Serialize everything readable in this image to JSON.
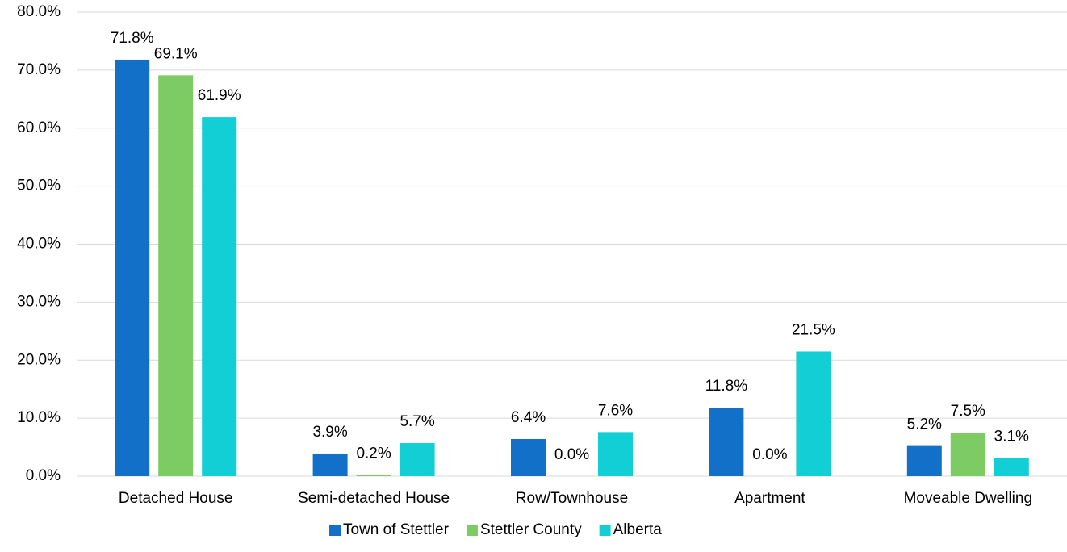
{
  "chart_data": {
    "type": "bar",
    "categories": [
      "Detached House",
      "Semi-detached House",
      "Row/Townhouse",
      "Apartment",
      "Moveable Dwelling"
    ],
    "series": [
      {
        "name": "Town of Stettler",
        "color": "#1370c8",
        "values": [
          71.8,
          3.9,
          6.4,
          11.8,
          5.2
        ],
        "value_labels": [
          "71.8%",
          "3.9%",
          "6.4%",
          "11.8%",
          "5.2%"
        ]
      },
      {
        "name": "Stettler County",
        "color": "#7ccc63",
        "values": [
          69.1,
          0.2,
          0.0,
          0.0,
          7.5
        ],
        "value_labels": [
          "69.1%",
          "0.2%",
          "0.0%",
          "0.0%",
          "7.5%"
        ]
      },
      {
        "name": "Alberta",
        "color": "#12cfd6",
        "values": [
          61.9,
          5.7,
          7.6,
          21.5,
          3.1
        ],
        "value_labels": [
          "61.9%",
          "5.7%",
          "7.6%",
          "21.5%",
          "3.1%"
        ]
      }
    ],
    "ylim": [
      0,
      80
    ],
    "yticks": [
      {
        "value": 0,
        "label": "0.0%"
      },
      {
        "value": 10,
        "label": "10.0%"
      },
      {
        "value": 20,
        "label": "20.0%"
      },
      {
        "value": 30,
        "label": "30.0%"
      },
      {
        "value": 40,
        "label": "40.0%"
      },
      {
        "value": 50,
        "label": "50.0%"
      },
      {
        "value": 60,
        "label": "60.0%"
      },
      {
        "value": 70,
        "label": "70.0%"
      },
      {
        "value": 80,
        "label": "80.0%"
      }
    ],
    "grid": true,
    "legend": "bottom"
  }
}
